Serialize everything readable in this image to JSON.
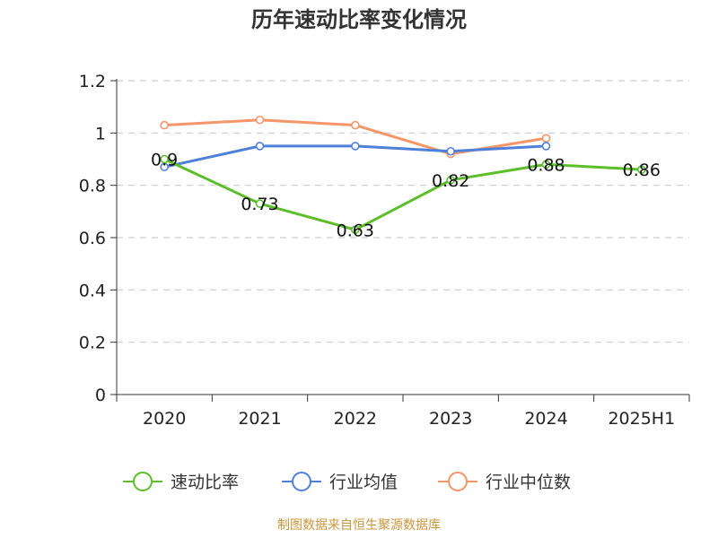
{
  "source_text": "制图数据来自恒生聚源数据库",
  "chart_data": {
    "type": "line",
    "title": "历年速动比率变化情况",
    "xlabel": "",
    "ylabel": "",
    "categories": [
      "2020",
      "2021",
      "2022",
      "2023",
      "2024",
      "2025H1"
    ],
    "ylim": [
      0,
      1.2
    ],
    "yticks": [
      "0",
      "0.2",
      "0.4",
      "0.6",
      "0.8",
      "1",
      "1.2"
    ],
    "grid": true,
    "legend_position": "bottom",
    "series": [
      {
        "name": "速动比率",
        "color": "#5cbf2a",
        "values": [
          0.9,
          0.73,
          0.63,
          0.82,
          0.88,
          0.86
        ],
        "labels": [
          "0.9",
          "0.73",
          "0.63",
          "0.82",
          "0.88",
          "0.86"
        ]
      },
      {
        "name": "行业均值",
        "color": "#4f80d9",
        "values": [
          0.87,
          0.95,
          0.95,
          0.93,
          0.95,
          null
        ]
      },
      {
        "name": "行业中位数",
        "color": "#f4956a",
        "values": [
          1.03,
          1.05,
          1.03,
          0.92,
          0.98,
          null
        ]
      }
    ]
  }
}
